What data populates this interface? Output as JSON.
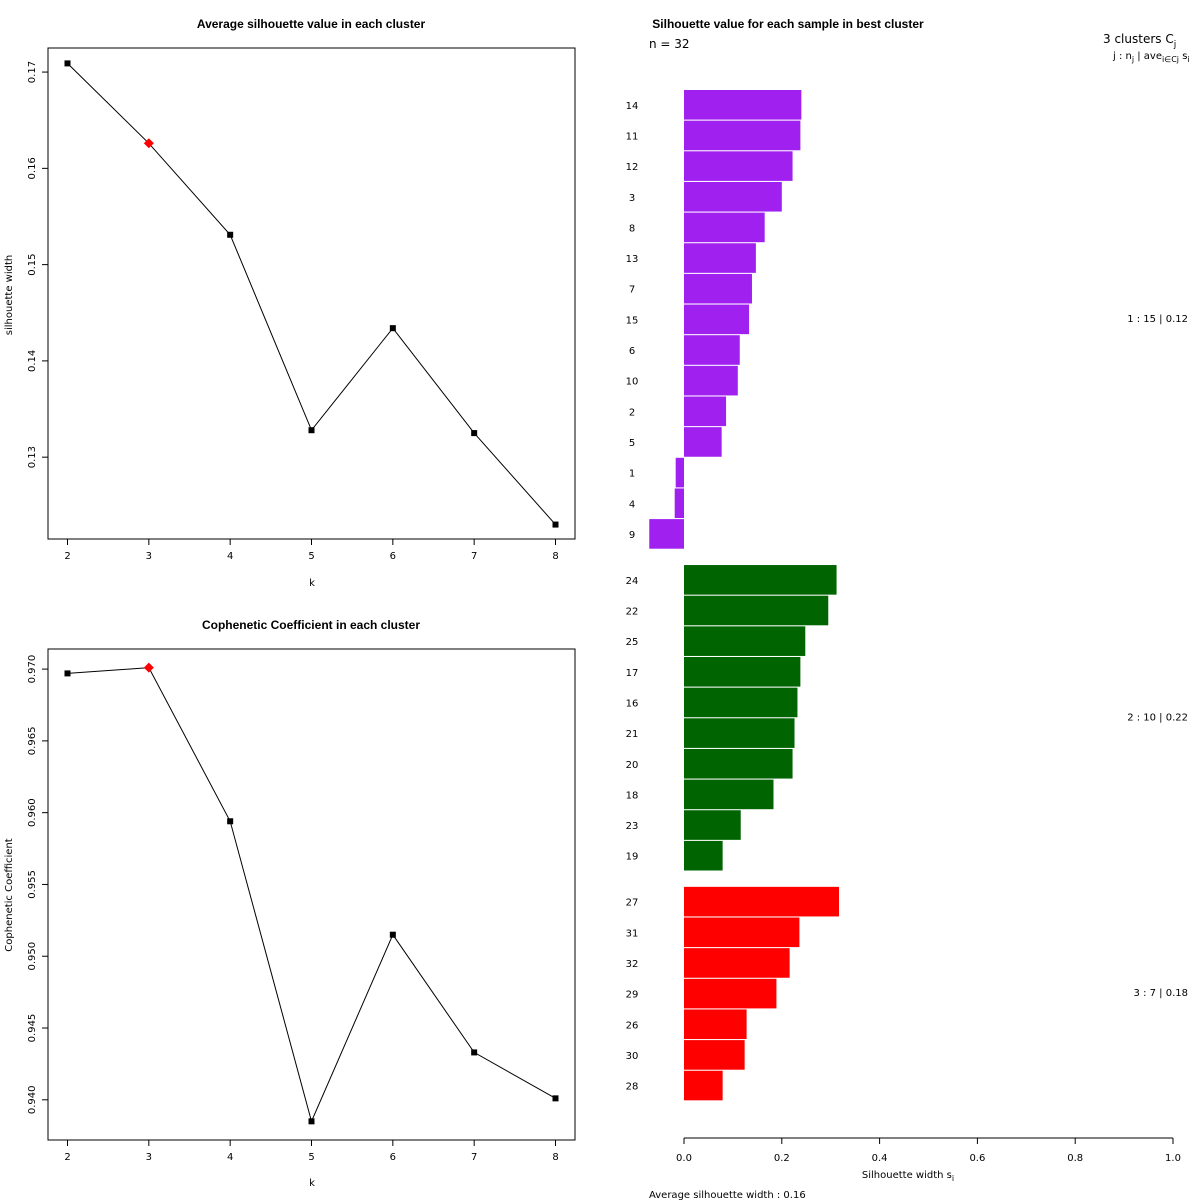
{
  "chart_data": [
    {
      "type": "line",
      "title": "Average silhouette value in each cluster",
      "xlabel": "k",
      "ylabel": "silhouette width",
      "x": [
        2,
        3,
        4,
        5,
        6,
        7,
        8
      ],
      "values": [
        0.1709,
        0.1626,
        0.1531,
        0.1328,
        0.1434,
        0.1325,
        0.123
      ],
      "highlight_index": 1,
      "xlim": [
        2,
        8
      ],
      "ylim": [
        0.1215,
        0.1725
      ],
      "yticks": [
        0.13,
        0.14,
        0.15,
        0.16,
        0.17
      ],
      "yticklabels": [
        "0.13",
        "0.14",
        "0.15",
        "0.16",
        "0.17"
      ]
    },
    {
      "type": "line",
      "title": "Cophenetic Coefficient in each cluster",
      "xlabel": "k",
      "ylabel": "Cophenetic Coefficient",
      "x": [
        2,
        3,
        4,
        5,
        6,
        7,
        8
      ],
      "values": [
        0.9697,
        0.9701,
        0.9594,
        0.9385,
        0.9515,
        0.9433,
        0.9401
      ],
      "highlight_index": 1,
      "xlim": [
        2,
        8
      ],
      "ylim": [
        0.9372,
        0.9714
      ],
      "yticks": [
        0.94,
        0.945,
        0.95,
        0.955,
        0.96,
        0.965,
        0.97
      ],
      "yticklabels": [
        "0.940",
        "0.945",
        "0.950",
        "0.955",
        "0.960",
        "0.965",
        "0.970"
      ]
    },
    {
      "type": "bar",
      "orientation": "horizontal",
      "title": "Silhouette value for each sample in best cluster",
      "xlabel": "Silhouette width s",
      "xlabel_subscript": "i",
      "xlim": [
        0,
        1
      ],
      "xticks": [
        0,
        0.2,
        0.4,
        0.6,
        0.8,
        1
      ],
      "xticklabels": [
        "0.0",
        "0.2",
        "0.4",
        "0.6",
        "0.8",
        "1.0"
      ],
      "n_label": "n = 32",
      "header_line1": "3  clusters  C",
      "header_line1_sub": "j",
      "header_line2_a": "j :  n",
      "header_line2_b": " | ave",
      "header_line2_c": "  s",
      "header_sub_j": "j",
      "header_sub_iej": "i∈Cj",
      "header_sub_i": "i",
      "average_label": "Average silhouette width :  0.16",
      "clusters": [
        {
          "summary": "1 :   15  |  0.12",
          "color": "#A020F0",
          "samples": [
            "14",
            "11",
            "12",
            "3",
            "8",
            "13",
            "7",
            "15",
            "6",
            "10",
            "2",
            "5",
            "1",
            "4",
            "9"
          ],
          "values": [
            0.24,
            0.238,
            0.222,
            0.2,
            0.165,
            0.147,
            0.139,
            0.133,
            0.114,
            0.11,
            0.086,
            0.077,
            -0.017,
            -0.019,
            -0.071
          ]
        },
        {
          "summary": "2 :   10  |  0.22",
          "color": "#006400",
          "samples": [
            "24",
            "22",
            "25",
            "17",
            "16",
            "21",
            "20",
            "18",
            "23",
            "19"
          ],
          "values": [
            0.312,
            0.295,
            0.248,
            0.238,
            0.232,
            0.226,
            0.222,
            0.183,
            0.116,
            0.079
          ]
        },
        {
          "summary": "3 :   7  |  0.18",
          "color": "#FF0000",
          "samples": [
            "27",
            "31",
            "32",
            "29",
            "26",
            "30",
            "28"
          ],
          "values": [
            0.317,
            0.236,
            0.216,
            0.189,
            0.128,
            0.124,
            0.079
          ]
        }
      ]
    }
  ]
}
